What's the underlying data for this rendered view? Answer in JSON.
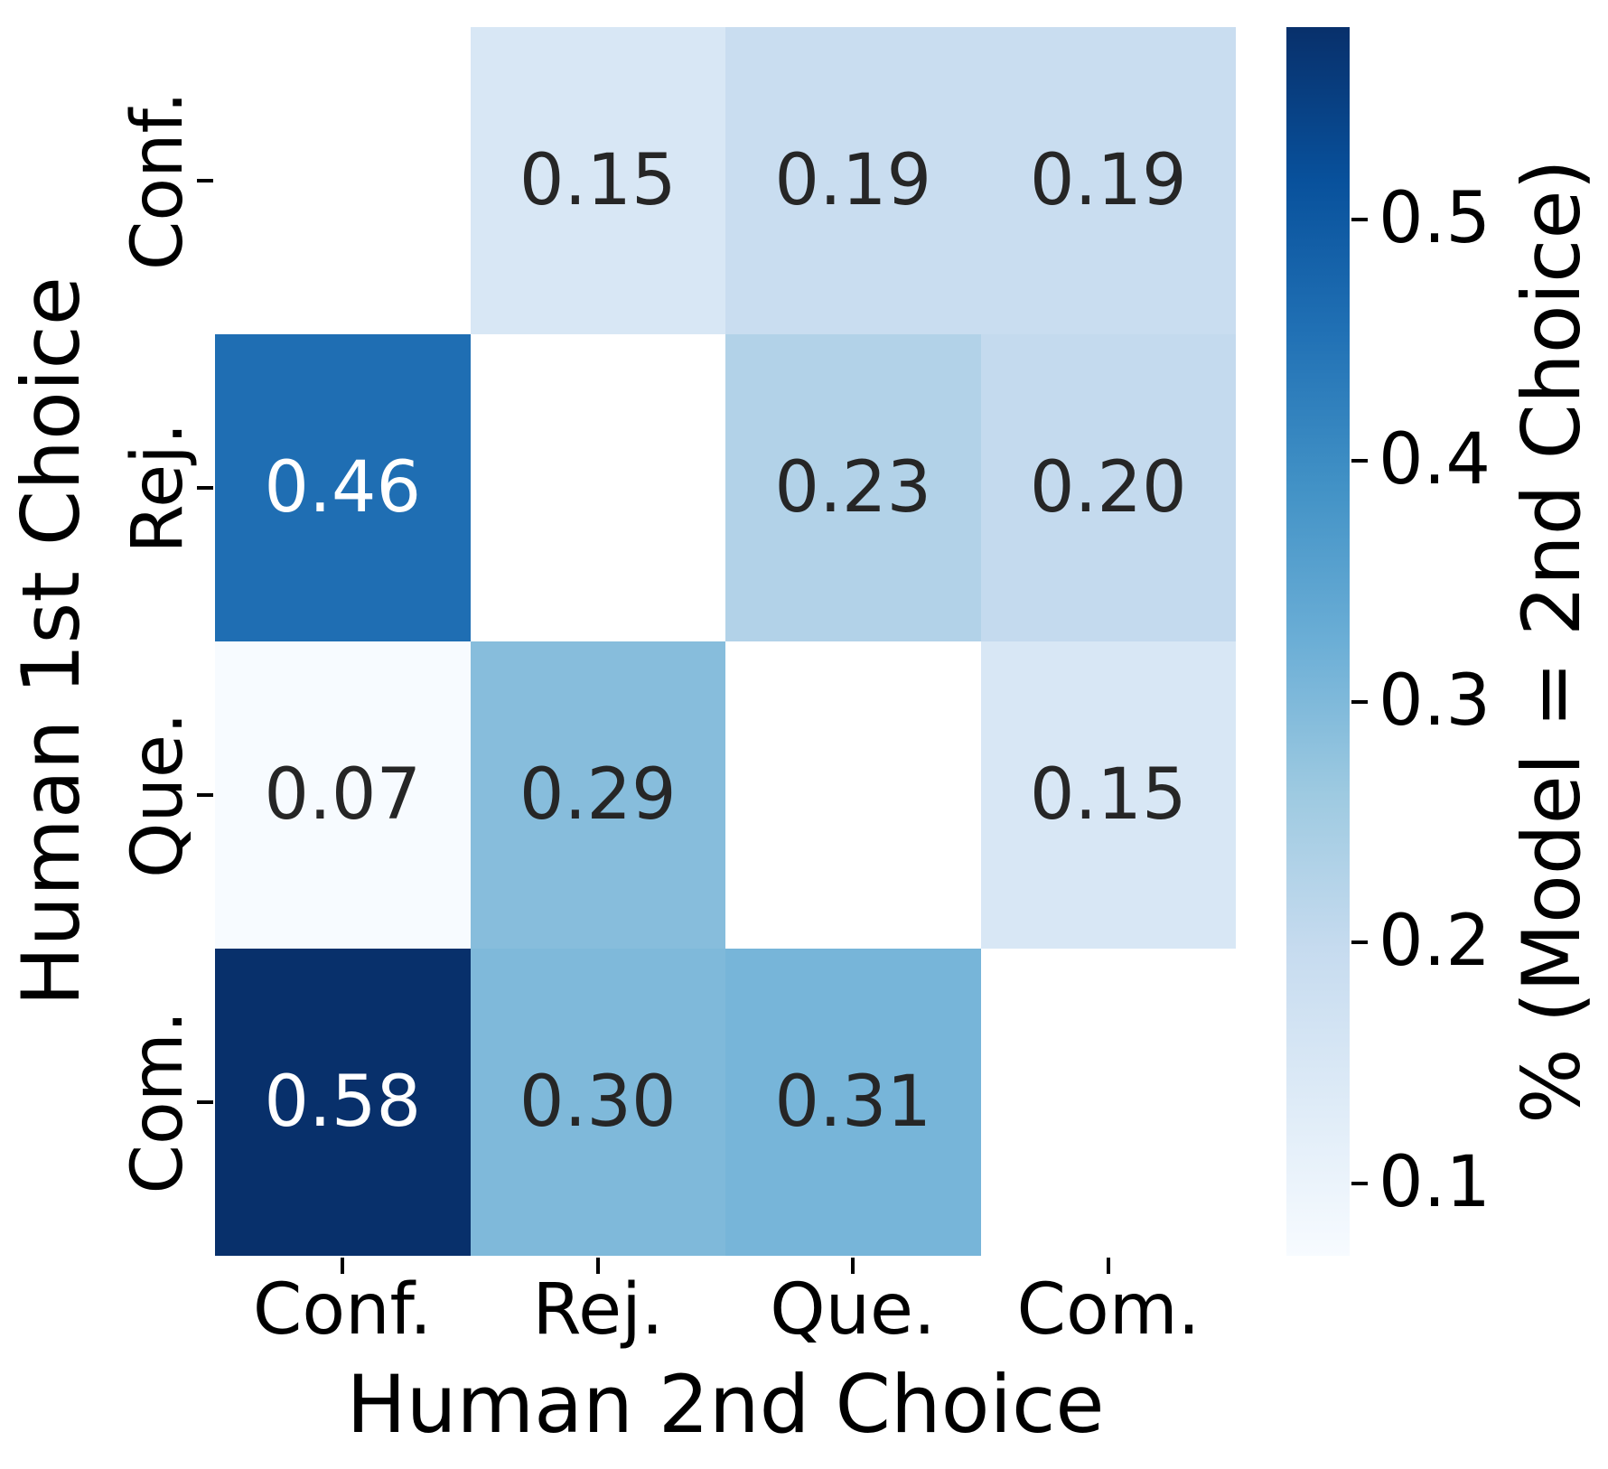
{
  "chart_data": {
    "type": "heatmap",
    "title": "",
    "xlabel": "Human 2nd Choice",
    "ylabel": "Human 1st Choice",
    "colorbar_label": "% (Model = 2nd Choice)",
    "x_ticklabels": [
      "Conf.",
      "Rej.",
      "Que.",
      "Com."
    ],
    "y_ticklabels": [
      "Conf.",
      "Rej.",
      "Que.",
      "Com."
    ],
    "colorbar_tick_labels": [
      "0.5",
      "0.4",
      "0.3",
      "0.2",
      "0.1"
    ],
    "colorbar_tick_values": [
      0.5,
      0.4,
      0.3,
      0.2,
      0.1
    ],
    "vmin": 0.07,
    "vmax": 0.58,
    "colormap": "Blues",
    "colormap_stops": [
      "#f7fbff",
      "#deebf7",
      "#c6dbef",
      "#9ecae1",
      "#6baed6",
      "#4292c6",
      "#2171b5",
      "#08519c",
      "#08306b"
    ],
    "diagonal_masked": true,
    "grid": false,
    "values": [
      [
        null,
        0.15,
        0.19,
        0.19
      ],
      [
        0.46,
        null,
        0.23,
        0.2
      ],
      [
        0.07,
        0.29,
        null,
        0.15
      ],
      [
        0.58,
        0.3,
        0.31,
        null
      ]
    ],
    "cell_labels": [
      [
        "",
        "0.15",
        "0.19",
        "0.19"
      ],
      [
        "0.46",
        "",
        "0.23",
        "0.20"
      ],
      [
        "0.07",
        "0.29",
        "",
        "0.15"
      ],
      [
        "0.58",
        "0.30",
        "0.31",
        ""
      ]
    ],
    "cell_colors": [
      [
        "#ffffff",
        "#d8e7f5",
        "#c9ddf0",
        "#c9ddf0"
      ],
      [
        "#1f6eb3",
        "#ffffff",
        "#b2d2e8",
        "#c4daee"
      ],
      [
        "#f7fbff",
        "#87bddc",
        "#ffffff",
        "#d8e7f5"
      ],
      [
        "#08306b",
        "#7fb9da",
        "#77b5d9",
        "#ffffff"
      ]
    ],
    "cell_text_colors": [
      [
        "",
        "#262626",
        "#262626",
        "#262626"
      ],
      [
        "#ffffff",
        "",
        "#262626",
        "#262626"
      ],
      [
        "#262626",
        "#262626",
        "",
        "#262626"
      ],
      [
        "#ffffff",
        "#262626",
        "#262626",
        ""
      ]
    ],
    "annotation_dark_color": "#262626",
    "annotation_light_color": "#ffffff",
    "background_color": "#ffffff"
  }
}
